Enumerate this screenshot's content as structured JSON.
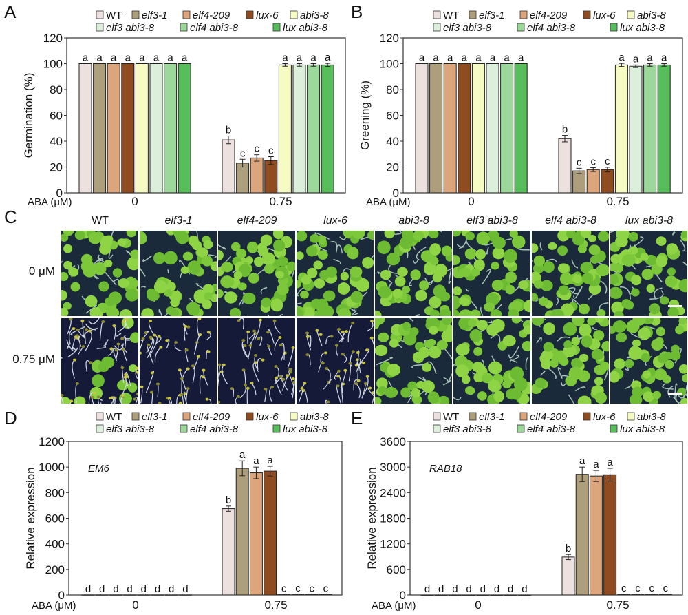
{
  "genotypes": [
    {
      "name": "WT",
      "italic": false,
      "color": "#ece1de"
    },
    {
      "name": "elf3-1",
      "italic": true,
      "color": "#ad9f7b"
    },
    {
      "name": "elf4-209",
      "italic": true,
      "color": "#dda57c"
    },
    {
      "name": "lux-6",
      "italic": true,
      "color": "#8f4c20"
    },
    {
      "name": "abi3-8",
      "italic": true,
      "color": "#f6fbc4"
    },
    {
      "name": "elf3 abi3-8",
      "italic": true,
      "color": "#dcefdb"
    },
    {
      "name": "elf4 abi3-8",
      "italic": true,
      "color": "#9cd89a"
    },
    {
      "name": "lux abi3-8",
      "italic": true,
      "color": "#58bd5b"
    }
  ],
  "panel_letters": {
    "A": "A",
    "B": "B",
    "C": "C",
    "D": "D",
    "E": "E"
  },
  "xaxis_prefix": "ABA (μM)",
  "photos": {
    "rows": [
      "0 μM",
      "0.75 μM"
    ],
    "columns": [
      "WT",
      "elf3-1",
      "elf4-209",
      "lux-6",
      "abi3-8",
      "elf3 abi3-8",
      "elf4 abi3-8",
      "lux abi3-8"
    ],
    "seedling_state": [
      [
        "green",
        "green",
        "green",
        "green",
        "green",
        "green",
        "green",
        "green"
      ],
      [
        "partial",
        "etiolated",
        "etiolated",
        "etiolated",
        "green",
        "green",
        "green",
        "green"
      ]
    ]
  },
  "chart_data": [
    {
      "id": "A",
      "type": "bar",
      "title": "",
      "ylabel": "Germination (%)",
      "xlabel": "ABA (μM)",
      "categories": [
        "0",
        "0.75"
      ],
      "ylim": [
        0,
        120
      ],
      "yticks": [
        0,
        20,
        40,
        60,
        80,
        100,
        120
      ],
      "inset_label": "",
      "series_values": [
        [
          100,
          41
        ],
        [
          100,
          23
        ],
        [
          100,
          27
        ],
        [
          100,
          25
        ],
        [
          100,
          99
        ],
        [
          100,
          99
        ],
        [
          100,
          99
        ],
        [
          100,
          99
        ]
      ],
      "series_errors": [
        [
          0,
          3
        ],
        [
          0,
          3
        ],
        [
          0,
          2.5
        ],
        [
          0,
          3
        ],
        [
          0,
          1
        ],
        [
          0,
          1
        ],
        [
          0,
          1
        ],
        [
          0,
          1.2
        ]
      ],
      "letters": [
        [
          "a",
          "b"
        ],
        [
          "a",
          "c"
        ],
        [
          "a",
          "c"
        ],
        [
          "a",
          "c"
        ],
        [
          "a",
          "a"
        ],
        [
          "a",
          "a"
        ],
        [
          "a",
          "a"
        ],
        [
          "a",
          "a"
        ]
      ]
    },
    {
      "id": "B",
      "type": "bar",
      "title": "",
      "ylabel": "Greening (%)",
      "xlabel": "ABA (μM)",
      "categories": [
        "0",
        "0.75"
      ],
      "ylim": [
        0,
        120
      ],
      "yticks": [
        0,
        20,
        40,
        60,
        80,
        100,
        120
      ],
      "inset_label": "",
      "series_values": [
        [
          100,
          42
        ],
        [
          100,
          17
        ],
        [
          100,
          18
        ],
        [
          100,
          18
        ],
        [
          100,
          99
        ],
        [
          100,
          98
        ],
        [
          100,
          99
        ],
        [
          100,
          99
        ]
      ],
      "series_errors": [
        [
          0,
          2.5
        ],
        [
          0,
          2
        ],
        [
          0,
          1.5
        ],
        [
          0,
          1.8
        ],
        [
          0,
          1.2
        ],
        [
          0,
          1
        ],
        [
          0,
          1
        ],
        [
          0,
          1
        ]
      ],
      "letters": [
        [
          "a",
          "b"
        ],
        [
          "a",
          "c"
        ],
        [
          "a",
          "c"
        ],
        [
          "a",
          "c"
        ],
        [
          "a",
          "a"
        ],
        [
          "a",
          "a"
        ],
        [
          "a",
          "a"
        ],
        [
          "a",
          "a"
        ]
      ]
    },
    {
      "id": "D",
      "type": "bar",
      "title": "",
      "ylabel": "Relative expression",
      "xlabel": "ABA (μM)",
      "categories": [
        "0",
        "0.75"
      ],
      "ylim": [
        0,
        1200
      ],
      "yticks": [
        0,
        200,
        400,
        600,
        800,
        1000,
        1200
      ],
      "inset_label": "EM6",
      "series_values": [
        [
          1,
          675
        ],
        [
          1,
          990
        ],
        [
          1,
          955
        ],
        [
          1,
          968
        ],
        [
          1,
          3
        ],
        [
          1,
          4
        ],
        [
          1,
          3
        ],
        [
          1,
          3
        ]
      ],
      "series_errors": [
        [
          0,
          20
        ],
        [
          0,
          58
        ],
        [
          0,
          45
        ],
        [
          0,
          38
        ],
        [
          0,
          1
        ],
        [
          0,
          1
        ],
        [
          0,
          1
        ],
        [
          0,
          1
        ]
      ],
      "letters": [
        [
          "d",
          "b"
        ],
        [
          "d",
          "a"
        ],
        [
          "d",
          "a"
        ],
        [
          "d",
          "a"
        ],
        [
          "d",
          "c"
        ],
        [
          "d",
          "c"
        ],
        [
          "d",
          "c"
        ],
        [
          "d",
          "c"
        ]
      ]
    },
    {
      "id": "E",
      "type": "bar",
      "title": "",
      "ylabel": "Relative expression",
      "xlabel": "ABA (μM)",
      "categories": [
        "0",
        "0.75"
      ],
      "ylim": [
        0,
        3600
      ],
      "yticks": [
        0,
        600,
        1200,
        1800,
        2400,
        3000,
        3600
      ],
      "inset_label": "RAB18",
      "series_values": [
        [
          1,
          890
        ],
        [
          1,
          2830
        ],
        [
          1,
          2790
        ],
        [
          1,
          2820
        ],
        [
          1,
          10
        ],
        [
          1,
          12
        ],
        [
          1,
          10
        ],
        [
          1,
          10
        ]
      ],
      "series_errors": [
        [
          0,
          60
        ],
        [
          0,
          170
        ],
        [
          0,
          130
        ],
        [
          0,
          150
        ],
        [
          0,
          3
        ],
        [
          0,
          3
        ],
        [
          0,
          3
        ],
        [
          0,
          3
        ]
      ],
      "letters": [
        [
          "d",
          "b"
        ],
        [
          "d",
          "a"
        ],
        [
          "d",
          "a"
        ],
        [
          "d",
          "a"
        ],
        [
          "d",
          "c"
        ],
        [
          "d",
          "c"
        ],
        [
          "d",
          "c"
        ],
        [
          "d",
          "c"
        ]
      ]
    }
  ]
}
